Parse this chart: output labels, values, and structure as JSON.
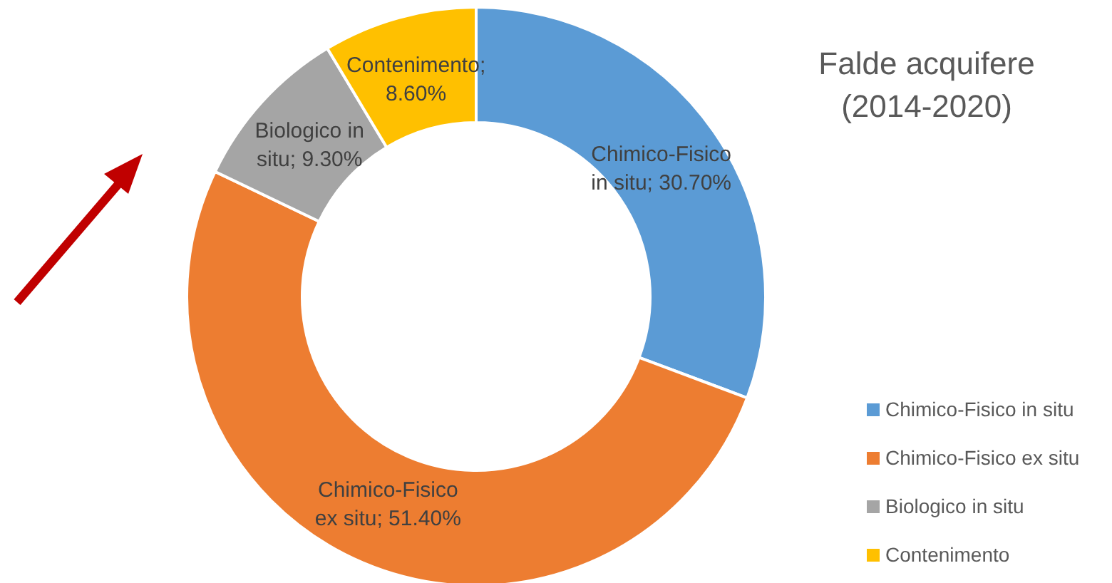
{
  "chart_data": {
    "type": "donut",
    "title": "Falde acquifere (2014-2020)",
    "categories": [
      "Chimico-Fisico in situ",
      "Chimico-Fisico ex situ",
      "Biologico in situ",
      "Contenimento"
    ],
    "values": [
      30.7,
      51.4,
      9.3,
      8.6
    ],
    "value_labels": [
      "Chimico-Fisico in situ; 30.70%",
      "Chimico-Fisico ex situ; 51.40%",
      "Biologico in situ; 9.30%",
      "Contenimento; 8.60%"
    ],
    "colors": [
      "#5b9bd5",
      "#ed7d31",
      "#a5a5a5",
      "#ffc000"
    ],
    "legend": "bottom right"
  }
}
